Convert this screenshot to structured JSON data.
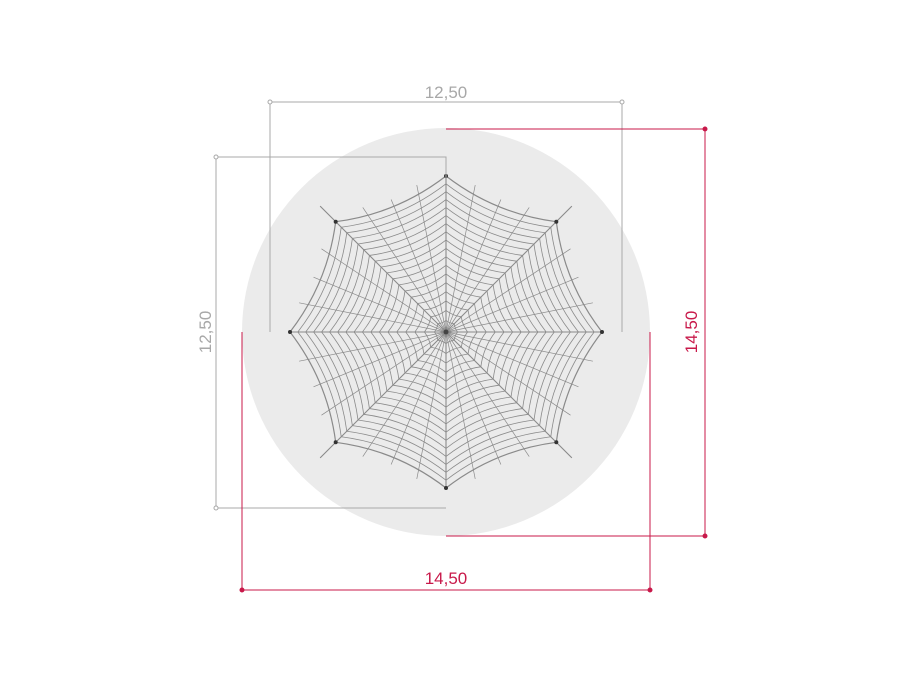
{
  "dimensions": {
    "net_width": "12,50",
    "net_depth": "12,50",
    "area_width": "14,50",
    "area_depth": "14,50"
  },
  "colors": {
    "safety_area": "#ebebeb",
    "net_lines": "#8a8a8a",
    "net_dimension": "#a8a8a8",
    "area_dimension": "#c8194a",
    "background": "#ffffff"
  },
  "net": {
    "shape": "eight-pointed spider web",
    "anchor_points": 8
  }
}
